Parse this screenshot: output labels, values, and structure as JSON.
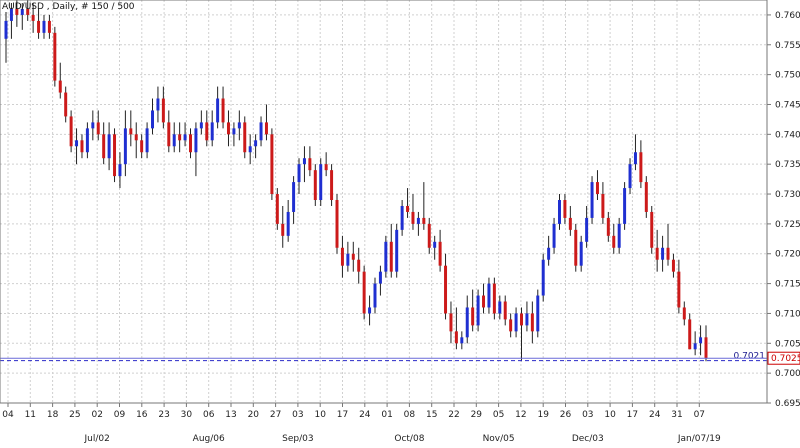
{
  "title": "AUD/USD , Daily, # 150 / 500",
  "chart_data": {
    "type": "candlestick",
    "title": "AUD/USD , Daily, # 150 / 500",
    "symbol": "AUD/USD",
    "timeframe": "Daily",
    "bars_label": "# 150 / 500",
    "y_range": [
      0.695,
      0.7625
    ],
    "y_ticks": [
      "0.7600",
      "0.7550",
      "0.7500",
      "0.7450",
      "0.7400",
      "0.7350",
      "0.7300",
      "0.7250",
      "0.7200",
      "0.7150",
      "0.7100",
      "0.7050",
      "0.7000",
      "0.6950"
    ],
    "x_day_ticks": [
      "04",
      "11",
      "18",
      "25",
      "02",
      "09",
      "16",
      "23",
      "30",
      "06",
      "13",
      "20",
      "27",
      "03",
      "10",
      "17",
      "24",
      "01",
      "08",
      "15",
      "22",
      "29",
      "05",
      "12",
      "19",
      "26",
      "03",
      "10",
      "17",
      "24",
      "31",
      "07"
    ],
    "x_month_labels": [
      "Jul/02",
      "Aug/06",
      "Sep/03",
      "Oct/08",
      "Nov/05",
      "Dec/03",
      "Jan/07/19"
    ],
    "grid": true,
    "colors": {
      "up": "#1f2fd1",
      "down": "#cc1a1a",
      "hline": "#2a2ac8",
      "grid": "#d0d0d0",
      "last_price": "#cc0000"
    },
    "horizontal_line": {
      "value": 0.7021,
      "label": "0.7021"
    },
    "last_price": {
      "value": 0.7025,
      "label": "0.7025"
    },
    "candles": [
      [
        0.756,
        0.7605,
        0.752,
        0.759
      ],
      [
        0.759,
        0.762,
        0.756,
        0.761
      ],
      [
        0.761,
        0.7625,
        0.758,
        0.76
      ],
      [
        0.76,
        0.762,
        0.7575,
        0.761
      ],
      [
        0.761,
        0.7625,
        0.759,
        0.76
      ],
      [
        0.76,
        0.762,
        0.757,
        0.759
      ],
      [
        0.759,
        0.761,
        0.756,
        0.757
      ],
      [
        0.757,
        0.76,
        0.756,
        0.759
      ],
      [
        0.759,
        0.76,
        0.756,
        0.757
      ],
      [
        0.757,
        0.758,
        0.748,
        0.749
      ],
      [
        0.749,
        0.752,
        0.746,
        0.747
      ],
      [
        0.747,
        0.748,
        0.742,
        0.743
      ],
      [
        0.743,
        0.744,
        0.737,
        0.738
      ],
      [
        0.738,
        0.741,
        0.735,
        0.739
      ],
      [
        0.739,
        0.74,
        0.736,
        0.737
      ],
      [
        0.737,
        0.742,
        0.736,
        0.741
      ],
      [
        0.741,
        0.744,
        0.739,
        0.742
      ],
      [
        0.742,
        0.744,
        0.739,
        0.74
      ],
      [
        0.74,
        0.742,
        0.735,
        0.736
      ],
      [
        0.736,
        0.742,
        0.734,
        0.74
      ],
      [
        0.74,
        0.741,
        0.732,
        0.733
      ],
      [
        0.733,
        0.737,
        0.731,
        0.735
      ],
      [
        0.735,
        0.744,
        0.733,
        0.741
      ],
      [
        0.741,
        0.744,
        0.738,
        0.74
      ],
      [
        0.74,
        0.742,
        0.736,
        0.739
      ],
      [
        0.739,
        0.74,
        0.736,
        0.737
      ],
      [
        0.737,
        0.742,
        0.736,
        0.741
      ],
      [
        0.741,
        0.746,
        0.74,
        0.744
      ],
      [
        0.744,
        0.748,
        0.742,
        0.746
      ],
      [
        0.746,
        0.748,
        0.741,
        0.742
      ],
      [
        0.742,
        0.744,
        0.737,
        0.738
      ],
      [
        0.738,
        0.742,
        0.737,
        0.74
      ],
      [
        0.74,
        0.742,
        0.737,
        0.739
      ],
      [
        0.739,
        0.742,
        0.738,
        0.74
      ],
      [
        0.74,
        0.741,
        0.736,
        0.737
      ],
      [
        0.737,
        0.742,
        0.733,
        0.741
      ],
      [
        0.741,
        0.744,
        0.74,
        0.742
      ],
      [
        0.742,
        0.744,
        0.738,
        0.739
      ],
      [
        0.739,
        0.744,
        0.738,
        0.742
      ],
      [
        0.742,
        0.748,
        0.741,
        0.746
      ],
      [
        0.746,
        0.748,
        0.741,
        0.742
      ],
      [
        0.742,
        0.744,
        0.738,
        0.74
      ],
      [
        0.74,
        0.742,
        0.738,
        0.741
      ],
      [
        0.741,
        0.744,
        0.739,
        0.742
      ],
      [
        0.742,
        0.743,
        0.736,
        0.737
      ],
      [
        0.737,
        0.74,
        0.735,
        0.738
      ],
      [
        0.738,
        0.74,
        0.736,
        0.739
      ],
      [
        0.739,
        0.743,
        0.738,
        0.742
      ],
      [
        0.742,
        0.745,
        0.739,
        0.74
      ],
      [
        0.74,
        0.741,
        0.729,
        0.73
      ],
      [
        0.73,
        0.731,
        0.724,
        0.725
      ],
      [
        0.725,
        0.728,
        0.721,
        0.723
      ],
      [
        0.723,
        0.729,
        0.722,
        0.727
      ],
      [
        0.727,
        0.733,
        0.725,
        0.732
      ],
      [
        0.732,
        0.736,
        0.73,
        0.735
      ],
      [
        0.735,
        0.738,
        0.732,
        0.736
      ],
      [
        0.736,
        0.738,
        0.733,
        0.734
      ],
      [
        0.734,
        0.735,
        0.728,
        0.729
      ],
      [
        0.729,
        0.736,
        0.728,
        0.735
      ],
      [
        0.735,
        0.737,
        0.733,
        0.734
      ],
      [
        0.734,
        0.735,
        0.728,
        0.729
      ],
      [
        0.729,
        0.73,
        0.72,
        0.721
      ],
      [
        0.721,
        0.723,
        0.716,
        0.718
      ],
      [
        0.718,
        0.722,
        0.717,
        0.72
      ],
      [
        0.72,
        0.722,
        0.717,
        0.719
      ],
      [
        0.719,
        0.721,
        0.715,
        0.717
      ],
      [
        0.717,
        0.718,
        0.709,
        0.71
      ],
      [
        0.71,
        0.713,
        0.708,
        0.711
      ],
      [
        0.711,
        0.716,
        0.71,
        0.715
      ],
      [
        0.715,
        0.718,
        0.713,
        0.717
      ],
      [
        0.717,
        0.723,
        0.716,
        0.722
      ],
      [
        0.722,
        0.725,
        0.716,
        0.717
      ],
      [
        0.717,
        0.725,
        0.716,
        0.724
      ],
      [
        0.724,
        0.729,
        0.723,
        0.728
      ],
      [
        0.728,
        0.731,
        0.726,
        0.727
      ],
      [
        0.727,
        0.73,
        0.724,
        0.725
      ],
      [
        0.725,
        0.727,
        0.723,
        0.726
      ],
      [
        0.726,
        0.732,
        0.724,
        0.725
      ],
      [
        0.725,
        0.726,
        0.72,
        0.721
      ],
      [
        0.721,
        0.723,
        0.719,
        0.722
      ],
      [
        0.722,
        0.724,
        0.717,
        0.718
      ],
      [
        0.718,
        0.72,
        0.709,
        0.71
      ],
      [
        0.71,
        0.712,
        0.705,
        0.707
      ],
      [
        0.707,
        0.711,
        0.704,
        0.705
      ],
      [
        0.705,
        0.707,
        0.704,
        0.706
      ],
      [
        0.706,
        0.713,
        0.705,
        0.711
      ],
      [
        0.711,
        0.714,
        0.707,
        0.708
      ],
      [
        0.708,
        0.714,
        0.707,
        0.713
      ],
      [
        0.713,
        0.715,
        0.71,
        0.711
      ],
      [
        0.711,
        0.716,
        0.71,
        0.715
      ],
      [
        0.715,
        0.716,
        0.709,
        0.71
      ],
      [
        0.71,
        0.713,
        0.709,
        0.712
      ],
      [
        0.712,
        0.713,
        0.708,
        0.709
      ],
      [
        0.709,
        0.71,
        0.706,
        0.707
      ],
      [
        0.707,
        0.711,
        0.706,
        0.71
      ],
      [
        0.71,
        0.711,
        0.702,
        0.708
      ],
      [
        0.708,
        0.712,
        0.707,
        0.71
      ],
      [
        0.71,
        0.712,
        0.705,
        0.707
      ],
      [
        0.707,
        0.714,
        0.706,
        0.713
      ],
      [
        0.713,
        0.72,
        0.712,
        0.719
      ],
      [
        0.719,
        0.723,
        0.718,
        0.721
      ],
      [
        0.721,
        0.726,
        0.72,
        0.725
      ],
      [
        0.725,
        0.73,
        0.724,
        0.729
      ],
      [
        0.729,
        0.73,
        0.725,
        0.726
      ],
      [
        0.726,
        0.728,
        0.723,
        0.724
      ],
      [
        0.724,
        0.725,
        0.717,
        0.718
      ],
      [
        0.718,
        0.723,
        0.717,
        0.722
      ],
      [
        0.722,
        0.728,
        0.721,
        0.726
      ],
      [
        0.726,
        0.733,
        0.725,
        0.732
      ],
      [
        0.732,
        0.734,
        0.729,
        0.73
      ],
      [
        0.73,
        0.732,
        0.725,
        0.726
      ],
      [
        0.726,
        0.727,
        0.722,
        0.723
      ],
      [
        0.723,
        0.725,
        0.72,
        0.721
      ],
      [
        0.721,
        0.726,
        0.72,
        0.725
      ],
      [
        0.725,
        0.732,
        0.724,
        0.731
      ],
      [
        0.731,
        0.736,
        0.73,
        0.735
      ],
      [
        0.735,
        0.74,
        0.734,
        0.737
      ],
      [
        0.737,
        0.739,
        0.731,
        0.732
      ],
      [
        0.732,
        0.733,
        0.726,
        0.727
      ],
      [
        0.727,
        0.728,
        0.72,
        0.721
      ],
      [
        0.721,
        0.724,
        0.717,
        0.719
      ],
      [
        0.719,
        0.723,
        0.717,
        0.721
      ],
      [
        0.721,
        0.725,
        0.718,
        0.719
      ],
      [
        0.719,
        0.72,
        0.716,
        0.717
      ],
      [
        0.717,
        0.719,
        0.71,
        0.711
      ],
      [
        0.711,
        0.712,
        0.708,
        0.709
      ],
      [
        0.709,
        0.71,
        0.704,
        0.704
      ],
      [
        0.704,
        0.707,
        0.703,
        0.705
      ],
      [
        0.705,
        0.708,
        0.703,
        0.706
      ],
      [
        0.706,
        0.708,
        0.702,
        0.7025
      ]
    ]
  }
}
